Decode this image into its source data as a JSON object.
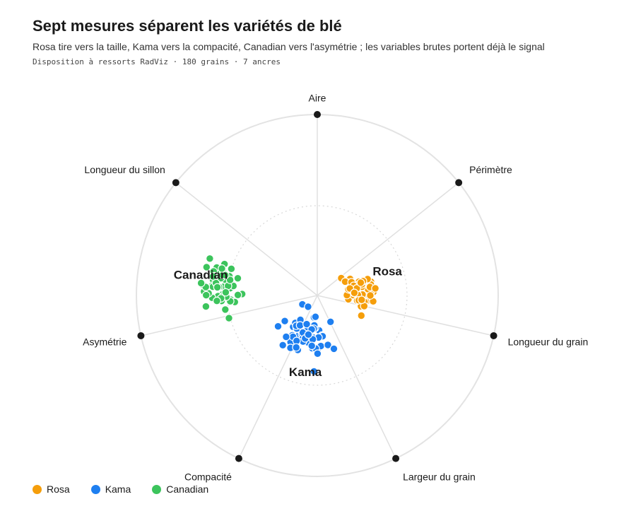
{
  "chart_data": {
    "type": "scatter",
    "title": "Sept mesures séparent les variétés de blé",
    "subtitle": "Rosa tire vers la taille, Kama vers la compacité, Canadian vers l'asymétrie ; les variables brutes portent déjà le signal",
    "caption": "Disposition à ressorts RadViz · 180 grains · 7 ancres",
    "anchors": [
      {
        "name": "Aire"
      },
      {
        "name": "Périmètre"
      },
      {
        "name": "Longueur du grain"
      },
      {
        "name": "Largeur du grain"
      },
      {
        "name": "Compacité"
      },
      {
        "name": "Asymétrie"
      },
      {
        "name": "Longueur du sillon"
      }
    ],
    "series": [
      {
        "name": "Rosa",
        "color": "#f59e0b",
        "center": [
          0.22,
          0.02
        ],
        "spread": 0.045,
        "count": 60
      },
      {
        "name": "Kama",
        "color": "#1e7ff0",
        "center": [
          -0.07,
          -0.22
        ],
        "spread": 0.055,
        "count": 60
      },
      {
        "name": "Canadian",
        "color": "#3cc45c",
        "center": [
          -0.53,
          0.05
        ],
        "spread": 0.06,
        "count": 60
      }
    ],
    "legend_position": "bottom-left",
    "grid": false
  }
}
